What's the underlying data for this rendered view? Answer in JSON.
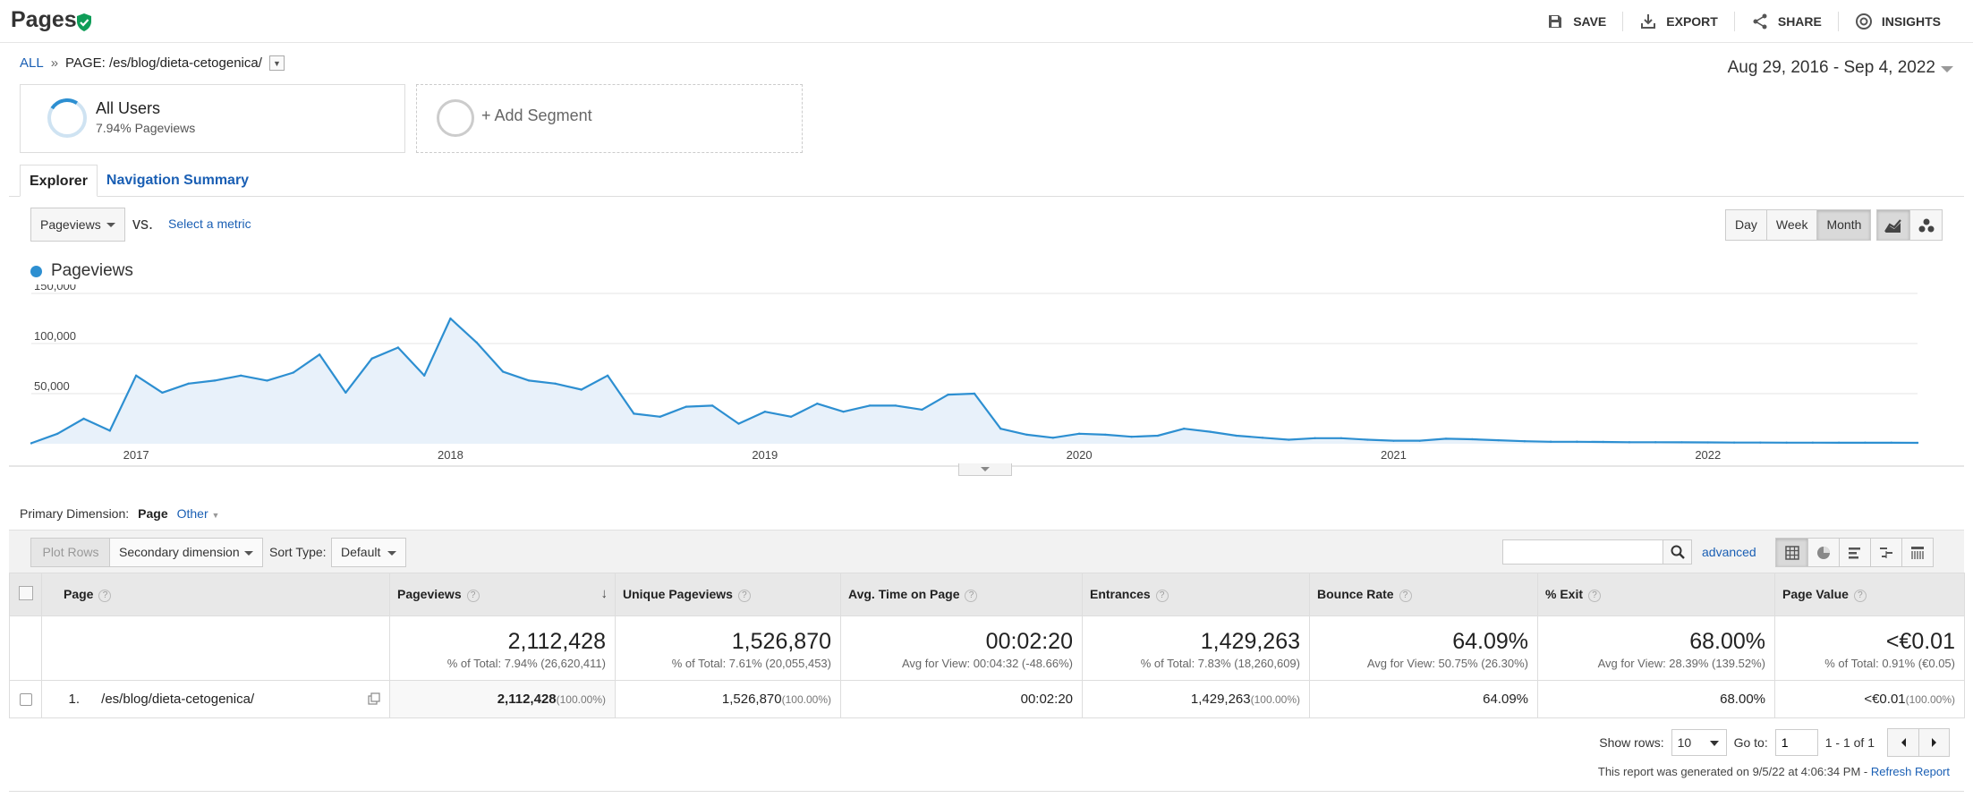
{
  "header": {
    "title": "Pages",
    "actions": {
      "save": "SAVE",
      "export": "EXPORT",
      "share": "SHARE",
      "insights": "INSIGHTS"
    }
  },
  "breadcrumb": {
    "all": "ALL",
    "separator": "»",
    "page": "PAGE: /es/blog/dieta-cetogenica/"
  },
  "date_range": "Aug 29, 2016 - Sep 4, 2022",
  "segments": {
    "active": {
      "name": "All Users",
      "detail": "7.94% Pageviews"
    },
    "add_label": "+ Add Segment"
  },
  "tabs": [
    "Explorer",
    "Navigation Summary"
  ],
  "metric": {
    "primary": "Pageviews",
    "vs": "vs.",
    "secondary_link": "Select a metric"
  },
  "period_buttons": [
    "Day",
    "Week",
    "Month"
  ],
  "active_period": "Month",
  "chart_data": {
    "type": "area",
    "series": [
      {
        "name": "Pageviews",
        "color": "#2d8fd1",
        "values": [
          500,
          10000,
          25000,
          13000,
          68000,
          51000,
          60000,
          63000,
          68000,
          63000,
          71000,
          89000,
          51000,
          85000,
          96000,
          68000,
          125000,
          101000,
          72000,
          63000,
          60000,
          54000,
          68000,
          30000,
          27000,
          37000,
          38000,
          20000,
          32000,
          27000,
          40000,
          32000,
          38000,
          38000,
          34000,
          49000,
          50000,
          15000,
          9000,
          6000,
          10000,
          9000,
          7000,
          8000,
          15000,
          12000,
          8000,
          6000,
          4000,
          5500,
          5500,
          4000,
          3000,
          3000,
          5000,
          4500,
          3500,
          2500,
          2000,
          2000,
          1800,
          1500,
          1500,
          1400,
          1300,
          1200,
          1200,
          1100,
          1100,
          1000,
          1000,
          1000,
          900
        ]
      }
    ],
    "x_ticks": [
      {
        "index": 4,
        "label": "2017"
      },
      {
        "index": 16,
        "label": "2018"
      },
      {
        "index": 28,
        "label": "2019"
      },
      {
        "index": 40,
        "label": "2020"
      },
      {
        "index": 52,
        "label": "2021"
      },
      {
        "index": 64,
        "label": "2022"
      }
    ],
    "y_ticks": [
      {
        "value": 50000,
        "label": "50,000"
      },
      {
        "value": 100000,
        "label": "100,000"
      },
      {
        "value": 150000,
        "label": "150,000"
      }
    ],
    "ylim": [
      0,
      150000
    ],
    "grid": true,
    "legend": "top-left"
  },
  "primary_dimension": {
    "label": "Primary Dimension:",
    "active": "Page",
    "other": "Other"
  },
  "toolbar": {
    "plot_rows": "Plot Rows",
    "secondary_dimension": "Secondary dimension",
    "sort_type_label": "Sort Type:",
    "sort_type_value": "Default",
    "search_value": "",
    "advanced": "advanced"
  },
  "table": {
    "columns": [
      "Page",
      "Pageviews",
      "Unique Pageviews",
      "Avg. Time on Page",
      "Entrances",
      "Bounce Rate",
      "% Exit",
      "Page Value"
    ],
    "help_mark": "?",
    "sort_arrow": "↓",
    "totals": [
      {
        "value": "2,112,428",
        "sub": "% of Total: 7.94% (26,620,411)"
      },
      {
        "value": "1,526,870",
        "sub": "% of Total: 7.61% (20,055,453)"
      },
      {
        "value": "00:02:20",
        "sub": "Avg for View: 00:04:32 (-48.66%)"
      },
      {
        "value": "1,429,263",
        "sub": "% of Total: 7.83% (18,260,609)"
      },
      {
        "value": "64.09%",
        "sub": "Avg for View: 50.75% (26.30%)"
      },
      {
        "value": "68.00%",
        "sub": "Avg for View: 28.39% (139.52%)"
      },
      {
        "value": "<€0.01",
        "sub": "% of Total: 0.91% (€0.05)"
      }
    ],
    "rows": [
      {
        "num": "1.",
        "page": "/es/blog/dieta-cetogenica/",
        "pageviews": "2,112,428",
        "pageviews_pct": "(100.00%)",
        "unique": "1,526,870",
        "unique_pct": "(100.00%)",
        "avg_time": "00:02:20",
        "entrances": "1,429,263",
        "entrances_pct": "(100.00%)",
        "bounce": "64.09%",
        "exit": "68.00%",
        "value": "<€0.01",
        "value_pct": "(100.00%)"
      }
    ]
  },
  "footer": {
    "show_rows_label": "Show rows:",
    "show_rows_value": "10",
    "goto_label": "Go to:",
    "goto_value": "1",
    "range": "1 - 1 of 1",
    "generated": "This report was generated on 9/5/22 at 4:06:34 PM - ",
    "refresh": "Refresh Report"
  }
}
